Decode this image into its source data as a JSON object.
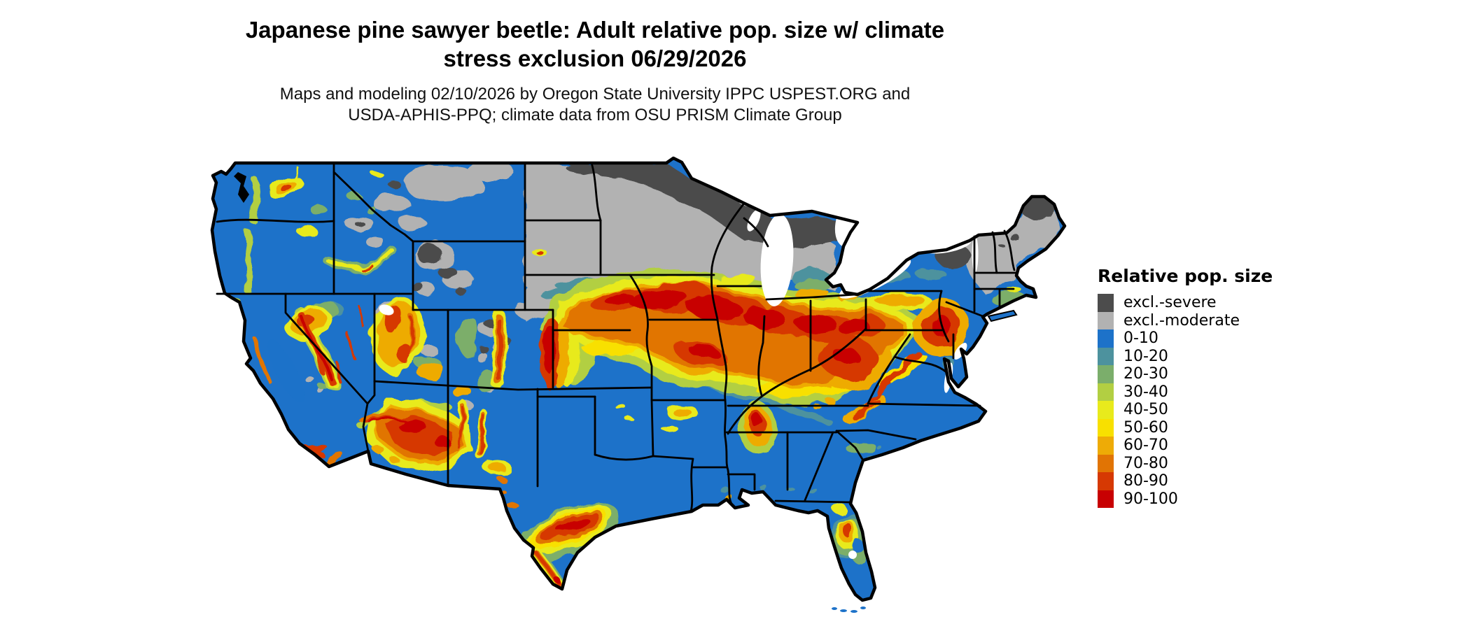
{
  "header": {
    "title_line1": "Japanese pine sawyer beetle: Adult relative pop. size w/ climate",
    "title_line2": "stress exclusion 06/29/2026",
    "subtitle_line1": "Maps and modeling 02/10/2026 by Oregon State University IPPC USPEST.ORG and",
    "subtitle_line2": "USDA-APHIS-PPQ; climate data from OSU PRISM Climate Group"
  },
  "legend": {
    "title": "Relative pop. size",
    "entries": [
      {
        "label": "excl.-severe",
        "color": "#4c4c4c"
      },
      {
        "label": "excl.-moderate",
        "color": "#b2b2b2"
      },
      {
        "label": "0-10",
        "color": "#1d72c9"
      },
      {
        "label": "10-20",
        "color": "#4d929e"
      },
      {
        "label": "20-30",
        "color": "#7bae6b"
      },
      {
        "label": "30-40",
        "color": "#b2cf42"
      },
      {
        "label": "40-50",
        "color": "#e8ea1c"
      },
      {
        "label": "50-60",
        "color": "#f8e000"
      },
      {
        "label": "60-70",
        "color": "#eeab06"
      },
      {
        "label": "70-80",
        "color": "#e17404"
      },
      {
        "label": "80-90",
        "color": "#d63903"
      },
      {
        "label": "90-100",
        "color": "#c80002"
      }
    ]
  }
}
